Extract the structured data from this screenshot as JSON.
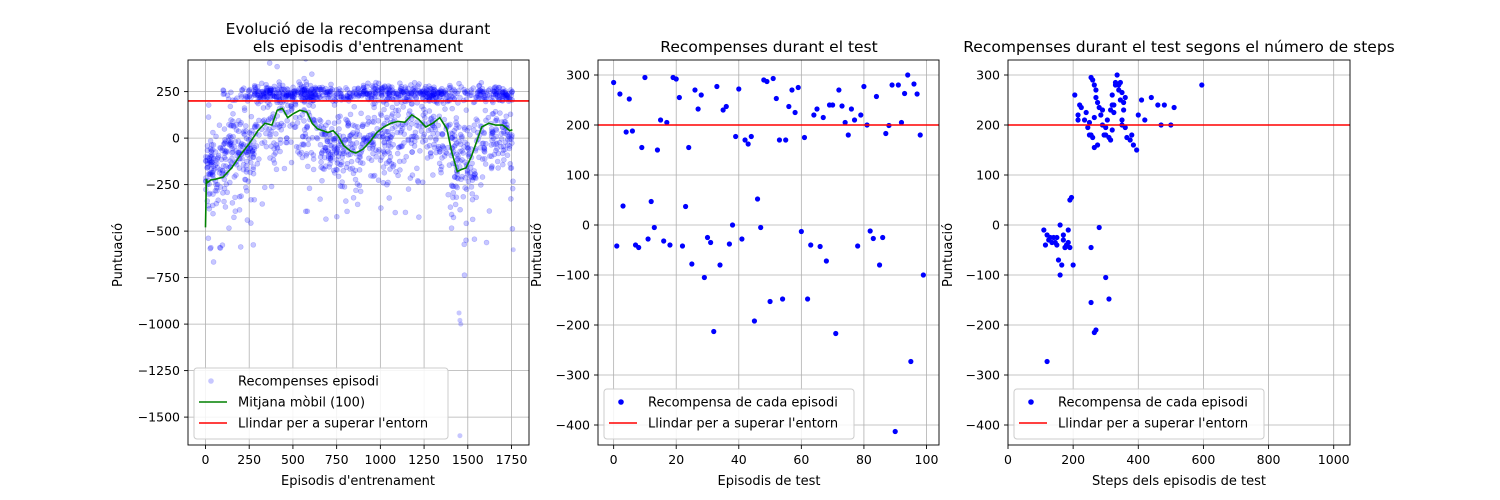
{
  "colors": {
    "scatter": "#0000ff",
    "moving_avg": "#008000",
    "threshold": "#ff0000",
    "grid": "#b0b0b0"
  },
  "chart_data": [
    {
      "type": "scatter",
      "title": "Evolució de la recompensa durant\nels episodis d'entrenament",
      "xlabel": "Episodis d'entrenament",
      "ylabel": "Puntuació",
      "xlim": [
        -100,
        1850
      ],
      "ylim": [
        -1650,
        420
      ],
      "xticks": [
        0,
        250,
        500,
        750,
        1000,
        1250,
        1500,
        1750
      ],
      "xtick_labels": [
        "0",
        "250",
        "500",
        "750",
        "1000",
        "1250",
        "1500",
        "1750"
      ],
      "yticks": [
        250,
        0,
        -250,
        -500,
        -750,
        -1000,
        -1250,
        -1500
      ],
      "ytick_labels": [
        "250",
        "0",
        "−250",
        "−500",
        "−750",
        "−1000",
        "−1250",
        "−1500"
      ],
      "grid": true,
      "legend_position": "lower-left",
      "threshold": 200,
      "series": [
        {
          "name": "Recompenses episodi",
          "kind": "scatter",
          "color": "#0000ff",
          "alpha": 0.22,
          "n": 1760,
          "clusters": [
            {
              "start": 0,
              "end": 100,
              "center": -150,
              "spread": 110,
              "high_frac": 0.0
            },
            {
              "start": 100,
              "end": 280,
              "center": -60,
              "spread": 110,
              "high_frac": 0.15
            },
            {
              "start": 280,
              "end": 650,
              "center": 80,
              "spread": 120,
              "high_frac": 0.55
            },
            {
              "start": 650,
              "end": 900,
              "center": -50,
              "spread": 110,
              "high_frac": 0.3
            },
            {
              "start": 900,
              "end": 1400,
              "center": 20,
              "spread": 110,
              "high_frac": 0.5
            },
            {
              "start": 1400,
              "end": 1550,
              "center": -100,
              "spread": 150,
              "high_frac": 0.15
            },
            {
              "start": 1550,
              "end": 1760,
              "center": 0,
              "spread": 80,
              "high_frac": 0.5
            }
          ]
        },
        {
          "name": "Mitjana mòbil (100)",
          "kind": "line",
          "color": "#008000",
          "x": [
            0,
            5,
            10,
            30,
            60,
            100,
            150,
            200,
            250,
            300,
            340,
            380,
            410,
            440,
            470,
            500,
            540,
            580,
            610,
            640,
            670,
            700,
            730,
            760,
            790,
            830,
            860,
            900,
            940,
            980,
            1020,
            1060,
            1100,
            1140,
            1180,
            1220,
            1260,
            1300,
            1340,
            1380,
            1410,
            1440,
            1460,
            1490,
            1520,
            1550,
            1580,
            1620,
            1660,
            1700,
            1740,
            1755
          ],
          "y": [
            -480,
            -220,
            -240,
            -225,
            -220,
            -210,
            -160,
            -90,
            -30,
            40,
            80,
            70,
            150,
            160,
            110,
            130,
            150,
            140,
            80,
            50,
            40,
            30,
            40,
            10,
            -40,
            -70,
            -80,
            -60,
            -20,
            30,
            60,
            80,
            90,
            85,
            125,
            100,
            60,
            80,
            110,
            50,
            -80,
            -180,
            -170,
            -160,
            -100,
            -20,
            60,
            80,
            70,
            70,
            40,
            45
          ]
        },
        {
          "name": "Llindar per a superar l'entorn",
          "kind": "hline",
          "color": "#ff0000",
          "y": 200
        }
      ]
    },
    {
      "type": "scatter",
      "title": "Recompenses durant el test",
      "xlabel": "Episodis de test",
      "ylabel": "Puntuació",
      "xlim": [
        -5,
        104
      ],
      "ylim": [
        -440,
        330
      ],
      "xticks": [
        0,
        20,
        40,
        60,
        80,
        100
      ],
      "xtick_labels": [
        "0",
        "20",
        "40",
        "60",
        "80",
        "100"
      ],
      "yticks": [
        300,
        200,
        100,
        0,
        -100,
        -200,
        -300,
        -400
      ],
      "ytick_labels": [
        "300",
        "200",
        "100",
        "0",
        "−100",
        "−200",
        "−300",
        "−400"
      ],
      "grid": true,
      "legend_position": "lower-left",
      "threshold": 200,
      "series": [
        {
          "name": "Recompensa de cada episodi",
          "kind": "scatter",
          "color": "#0000ff",
          "x": [
            0,
            1,
            2,
            3,
            4,
            5,
            6,
            7,
            8,
            9,
            10,
            11,
            12,
            13,
            14,
            15,
            16,
            17,
            18,
            19,
            20,
            21,
            22,
            23,
            24,
            25,
            26,
            27,
            28,
            29,
            30,
            31,
            32,
            33,
            34,
            35,
            36,
            37,
            38,
            39,
            40,
            41,
            42,
            43,
            44,
            45,
            46,
            47,
            48,
            49,
            50,
            51,
            52,
            53,
            54,
            55,
            56,
            57,
            58,
            59,
            60,
            61,
            62,
            63,
            64,
            65,
            66,
            67,
            68,
            69,
            70,
            71,
            72,
            73,
            74,
            75,
            76,
            77,
            78,
            79,
            80,
            81,
            82,
            83,
            84,
            85,
            86,
            87,
            88,
            89,
            90,
            91,
            92,
            93,
            94,
            95,
            96,
            97,
            98,
            99
          ],
          "y": [
            285,
            -42,
            262,
            38,
            186,
            252,
            188,
            -40,
            -45,
            155,
            295,
            -28,
            47,
            -5,
            150,
            210,
            -32,
            205,
            -40,
            295,
            292,
            255,
            -42,
            37,
            155,
            -78,
            270,
            232,
            260,
            -105,
            -25,
            -35,
            -213,
            277,
            -80,
            230,
            237,
            -38,
            0,
            177,
            272,
            -28,
            170,
            162,
            177,
            -192,
            52,
            -5,
            290,
            287,
            -153,
            293,
            253,
            170,
            -148,
            170,
            237,
            270,
            225,
            275,
            -13,
            175,
            -148,
            -40,
            220,
            232,
            -43,
            215,
            -72,
            240,
            240,
            -217,
            270,
            238,
            205,
            180,
            232,
            210,
            -42,
            220,
            277,
            200,
            -12,
            -27,
            257,
            -80,
            -25,
            183,
            199,
            280,
            -413,
            280,
            205,
            263,
            300,
            -273,
            282,
            262,
            180,
            -100
          ]
        },
        {
          "name": "Llindar per a superar l'entorn",
          "kind": "hline",
          "color": "#ff0000",
          "y": 200
        }
      ]
    },
    {
      "type": "scatter",
      "title": "Recompenses durant el test segons el número de steps",
      "xlabel": "Steps dels episodis de test",
      "ylabel": "Puntuació",
      "xlim": [
        0,
        1050
      ],
      "ylim": [
        -440,
        330
      ],
      "xticks": [
        0,
        200,
        400,
        600,
        800,
        1000
      ],
      "xtick_labels": [
        "0",
        "200",
        "400",
        "600",
        "800",
        "1000"
      ],
      "yticks": [
        300,
        200,
        100,
        0,
        -100,
        -200,
        -300,
        -400
      ],
      "ytick_labels": [
        "300",
        "200",
        "100",
        "0",
        "−100",
        "−200",
        "−300",
        "−400"
      ],
      "grid": true,
      "legend_position": "lower-left",
      "threshold": 200,
      "series": [
        {
          "name": "Recompensa de cada episodi",
          "kind": "scatter",
          "color": "#0000ff",
          "x": [
            120,
            135,
            150,
            155,
            160,
            165,
            170,
            175,
            180,
            185,
            190,
            195,
            140,
            145,
            150,
            160,
            170,
            175,
            180,
            185,
            190,
            200,
            130,
            110,
            115,
            125,
            205,
            215,
            225,
            255,
            260,
            265,
            270,
            265,
            310,
            315,
            255,
            350,
            120,
            300,
            255,
            265,
            270,
            280,
            290,
            300,
            310,
            320,
            325,
            330,
            335,
            345,
            350,
            355,
            360,
            380,
            400,
            410,
            420,
            440,
            460,
            470,
            480,
            510,
            595,
            500,
            235,
            240,
            245,
            250,
            255,
            260,
            265,
            270,
            275,
            280,
            285,
            290,
            295,
            300,
            305,
            315,
            320,
            325,
            330,
            340,
            345,
            350,
            355,
            365,
            375,
            385,
            395,
            215,
            220,
            250,
            275,
            320,
            340,
            360
          ],
          "y": [
            -20,
            -35,
            -40,
            -70,
            -100,
            -80,
            -20,
            -45,
            -40,
            -35,
            50,
            55,
            -25,
            -35,
            -25,
            0,
            -30,
            -45,
            -40,
            -10,
            -45,
            -80,
            -25,
            -10,
            -40,
            -30,
            260,
            220,
            235,
            295,
            290,
            280,
            270,
            155,
            175,
            170,
            -45,
            210,
            -273,
            180,
            -155,
            -215,
            -210,
            -5,
            200,
            -105,
            -148,
            240,
            225,
            280,
            300,
            250,
            265,
            245,
            255,
            180,
            220,
            250,
            210,
            255,
            240,
            200,
            240,
            235,
            280,
            200,
            210,
            225,
            195,
            205,
            180,
            175,
            215,
            255,
            245,
            235,
            220,
            230,
            180,
            195,
            210,
            230,
            260,
            240,
            285,
            270,
            285,
            200,
            230,
            175,
            170,
            160,
            150,
            210,
            240,
            180,
            160,
            190,
            280,
            195
          ]
        },
        {
          "name": "Llindar per a superar l'entorn",
          "kind": "hline",
          "color": "#ff0000",
          "y": 200
        }
      ]
    }
  ]
}
